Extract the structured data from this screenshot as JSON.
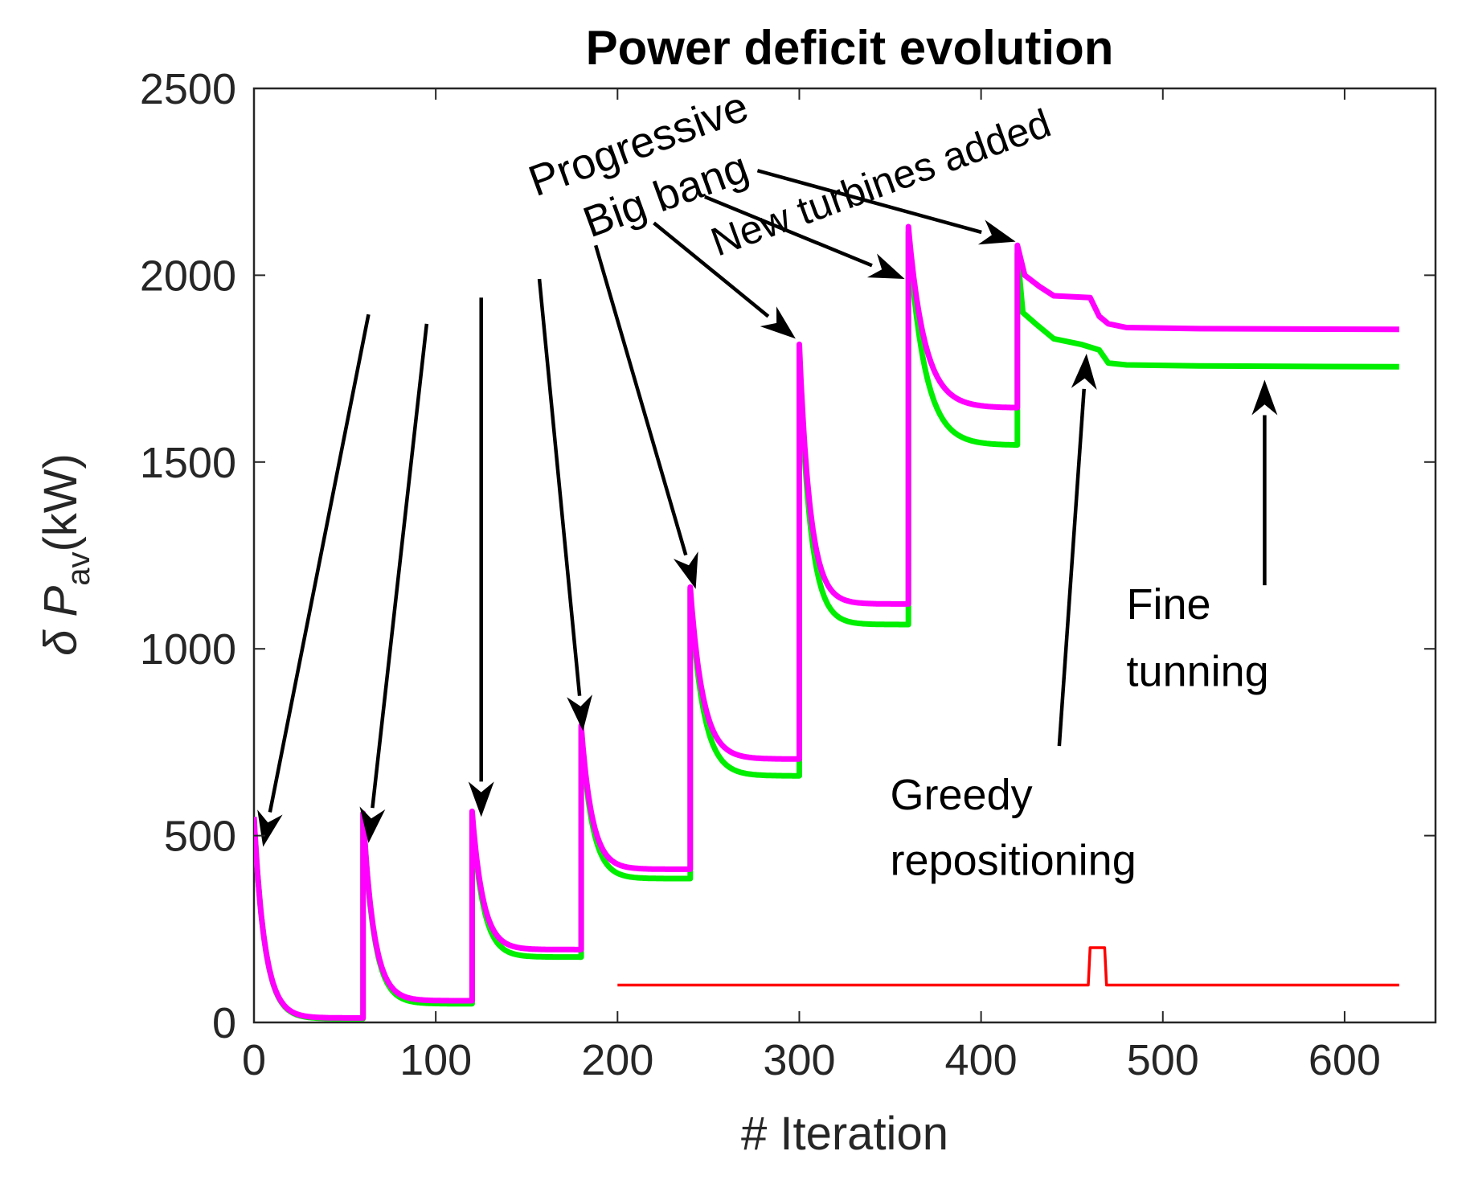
{
  "chart_data": {
    "type": "line",
    "title": "Power deficit evolution",
    "xlabel": "# Iteration",
    "ylabel_main": "δ P",
    "ylabel_sub": "av",
    "ylabel_unit": "(kW)",
    "xlim": [
      0,
      650
    ],
    "ylim": [
      0,
      2500
    ],
    "xticks": [
      0,
      100,
      200,
      300,
      400,
      500,
      600
    ],
    "yticks": [
      0,
      500,
      1000,
      1500,
      2000,
      2500
    ],
    "grid": false,
    "series": [
      {
        "name": "green",
        "color": "#00ee00",
        "segments": [
          {
            "start": 0,
            "end": 60,
            "peak": 550,
            "floor": 10,
            "tau": 6
          },
          {
            "start": 60,
            "end": 120,
            "peak": 560,
            "floor": 50,
            "tau": 6
          },
          {
            "start": 120,
            "end": 180,
            "peak": 560,
            "floor": 175,
            "tau": 6
          },
          {
            "start": 180,
            "end": 240,
            "peak": 790,
            "floor": 385,
            "tau": 6
          },
          {
            "start": 240,
            "end": 300,
            "peak": 1160,
            "floor": 660,
            "tau": 7
          },
          {
            "start": 300,
            "end": 360,
            "peak": 1800,
            "floor": 1065,
            "tau": 6
          },
          {
            "start": 360,
            "end": 420,
            "peak": 2115,
            "floor": 1545,
            "tau": 9
          }
        ],
        "tail": [
          [
            420,
            2060
          ],
          [
            423,
            1900
          ],
          [
            430,
            1870
          ],
          [
            440,
            1830
          ],
          [
            455,
            1815
          ],
          [
            465,
            1800
          ],
          [
            470,
            1765
          ],
          [
            480,
            1760
          ],
          [
            520,
            1757
          ],
          [
            630,
            1755
          ]
        ]
      },
      {
        "name": "magenta",
        "color": "#ff00ff",
        "segments": [
          {
            "start": 0,
            "end": 60,
            "peak": 550,
            "floor": 12,
            "tau": 6
          },
          {
            "start": 60,
            "end": 120,
            "peak": 560,
            "floor": 58,
            "tau": 6
          },
          {
            "start": 120,
            "end": 180,
            "peak": 565,
            "floor": 195,
            "tau": 6
          },
          {
            "start": 180,
            "end": 240,
            "peak": 795,
            "floor": 410,
            "tau": 6
          },
          {
            "start": 240,
            "end": 300,
            "peak": 1165,
            "floor": 705,
            "tau": 7
          },
          {
            "start": 300,
            "end": 360,
            "peak": 1815,
            "floor": 1120,
            "tau": 6
          },
          {
            "start": 360,
            "end": 420,
            "peak": 2130,
            "floor": 1645,
            "tau": 9
          }
        ],
        "tail": [
          [
            420,
            2080
          ],
          [
            424,
            2000
          ],
          [
            432,
            1970
          ],
          [
            440,
            1945
          ],
          [
            460,
            1940
          ],
          [
            465,
            1890
          ],
          [
            470,
            1870
          ],
          [
            480,
            1860
          ],
          [
            520,
            1857
          ],
          [
            630,
            1855
          ]
        ]
      },
      {
        "name": "red",
        "color": "#ff0000",
        "points": [
          [
            200,
            100
          ],
          [
            459,
            100
          ],
          [
            460,
            200
          ],
          [
            468,
            200
          ],
          [
            469,
            100
          ],
          [
            630,
            100
          ]
        ]
      }
    ],
    "annotations": [
      {
        "text": "Progressive",
        "x": 155,
        "y": 2210,
        "rotation": -20,
        "size": "large"
      },
      {
        "text": "Big bang",
        "x": 185,
        "y": 2100,
        "rotation": -20,
        "size": "large"
      },
      {
        "text": "New turbines added",
        "x": 255,
        "y": 2050,
        "rotation": -20,
        "size": "small"
      },
      {
        "text": "Fine",
        "x": 480,
        "y": 1080,
        "rotation": 0,
        "size": "large"
      },
      {
        "text": "tunning",
        "x": 480,
        "y": 900,
        "rotation": 0,
        "size": "large"
      },
      {
        "text": "Greedy",
        "x": 350,
        "y": 570,
        "rotation": 0,
        "size": "large"
      },
      {
        "text": "repositioning",
        "x": 350,
        "y": 395,
        "rotation": 0,
        "size": "large"
      }
    ],
    "arrows": [
      {
        "from": [
          63,
          1895
        ],
        "to": [
          5,
          470
        ]
      },
      {
        "from": [
          95,
          1870
        ],
        "to": [
          63,
          480
        ]
      },
      {
        "from": [
          125,
          1940
        ],
        "to": [
          125,
          550
        ]
      },
      {
        "from": [
          157,
          1990
        ],
        "to": [
          181,
          780
        ]
      },
      {
        "from": [
          188,
          2080
        ],
        "to": [
          243,
          1160
        ]
      },
      {
        "from": [
          220,
          2140
        ],
        "to": [
          298,
          1830
        ]
      },
      {
        "from": [
          248,
          2210
        ],
        "to": [
          358,
          1990
        ]
      },
      {
        "from": [
          277,
          2280
        ],
        "to": [
          419,
          2090
        ]
      },
      {
        "from": [
          443,
          740
        ],
        "to": [
          458,
          1790
        ]
      },
      {
        "from": [
          556,
          1170
        ],
        "to": [
          556,
          1720
        ]
      }
    ]
  }
}
